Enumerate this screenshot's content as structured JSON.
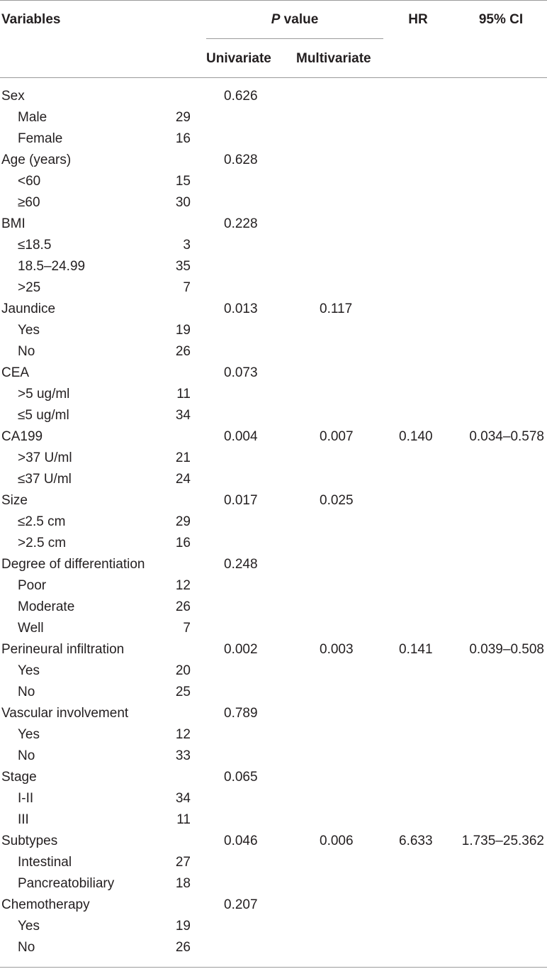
{
  "header": {
    "variables": "Variables",
    "p_value_italic": "P",
    "p_value_rest": " value",
    "univariate": "Univariate",
    "multivariate": "Multivariate",
    "hr": "HR",
    "ci": "95% CI"
  },
  "rows": [
    {
      "label": "Sex",
      "n": "",
      "uni": "0.626",
      "multi": "",
      "hr": "",
      "ci": "",
      "sub": false
    },
    {
      "label": "Male",
      "n": "29",
      "uni": "",
      "multi": "",
      "hr": "",
      "ci": "",
      "sub": true
    },
    {
      "label": "Female",
      "n": "16",
      "uni": "",
      "multi": "",
      "hr": "",
      "ci": "",
      "sub": true
    },
    {
      "label": "Age (years)",
      "n": "",
      "uni": "0.628",
      "multi": "",
      "hr": "",
      "ci": "",
      "sub": false
    },
    {
      "label": "<60",
      "n": "15",
      "uni": "",
      "multi": "",
      "hr": "",
      "ci": "",
      "sub": true
    },
    {
      "label": "≥60",
      "n": "30",
      "uni": "",
      "multi": "",
      "hr": "",
      "ci": "",
      "sub": true
    },
    {
      "label": "BMI",
      "n": "",
      "uni": "0.228",
      "multi": "",
      "hr": "",
      "ci": "",
      "sub": false
    },
    {
      "label": "≤18.5",
      "n": "3",
      "uni": "",
      "multi": "",
      "hr": "",
      "ci": "",
      "sub": true
    },
    {
      "label": "18.5–24.99",
      "n": "35",
      "uni": "",
      "multi": "",
      "hr": "",
      "ci": "",
      "sub": true
    },
    {
      "label": ">25",
      "n": "7",
      "uni": "",
      "multi": "",
      "hr": "",
      "ci": "",
      "sub": true
    },
    {
      "label": "Jaundice",
      "n": "",
      "uni": "0.013",
      "multi": "0.117",
      "hr": "",
      "ci": "",
      "sub": false
    },
    {
      "label": "Yes",
      "n": "19",
      "uni": "",
      "multi": "",
      "hr": "",
      "ci": "",
      "sub": true
    },
    {
      "label": "No",
      "n": "26",
      "uni": "",
      "multi": "",
      "hr": "",
      "ci": "",
      "sub": true
    },
    {
      "label": "CEA",
      "n": "",
      "uni": "0.073",
      "multi": "",
      "hr": "",
      "ci": "",
      "sub": false
    },
    {
      "label": ">5 ug/ml",
      "n": "11",
      "uni": "",
      "multi": "",
      "hr": "",
      "ci": "",
      "sub": true
    },
    {
      "label": "≤5 ug/ml",
      "n": "34",
      "uni": "",
      "multi": "",
      "hr": "",
      "ci": "",
      "sub": true
    },
    {
      "label": "CA199",
      "n": "",
      "uni": "0.004",
      "multi": "0.007",
      "hr": "0.140",
      "ci": "0.034–0.578",
      "sub": false
    },
    {
      "label": ">37 U/ml",
      "n": "21",
      "uni": "",
      "multi": "",
      "hr": "",
      "ci": "",
      "sub": true
    },
    {
      "label": "≤37 U/ml",
      "n": "24",
      "uni": "",
      "multi": "",
      "hr": "",
      "ci": "",
      "sub": true
    },
    {
      "label": "Size",
      "n": "",
      "uni": "0.017",
      "multi": "0.025",
      "hr": "",
      "ci": "",
      "sub": false
    },
    {
      "label": "≤2.5 cm",
      "n": "29",
      "uni": "",
      "multi": "",
      "hr": "",
      "ci": "",
      "sub": true
    },
    {
      "label": ">2.5 cm",
      "n": "16",
      "uni": "",
      "multi": "",
      "hr": "",
      "ci": "",
      "sub": true
    },
    {
      "label": "Degree of differentiation",
      "n": "",
      "uni": "0.248",
      "multi": "",
      "hr": "",
      "ci": "",
      "sub": false
    },
    {
      "label": "Poor",
      "n": "12",
      "uni": "",
      "multi": "",
      "hr": "",
      "ci": "",
      "sub": true
    },
    {
      "label": "Moderate",
      "n": "26",
      "uni": "",
      "multi": "",
      "hr": "",
      "ci": "",
      "sub": true
    },
    {
      "label": "Well",
      "n": "7",
      "uni": "",
      "multi": "",
      "hr": "",
      "ci": "",
      "sub": true
    },
    {
      "label": "Perineural infiltration",
      "n": "",
      "uni": "0.002",
      "multi": "0.003",
      "hr": "0.141",
      "ci": "0.039–0.508",
      "sub": false
    },
    {
      "label": "Yes",
      "n": "20",
      "uni": "",
      "multi": "",
      "hr": "",
      "ci": "",
      "sub": true
    },
    {
      "label": "No",
      "n": "25",
      "uni": "",
      "multi": "",
      "hr": "",
      "ci": "",
      "sub": true
    },
    {
      "label": "Vascular involvement",
      "n": "",
      "uni": "0.789",
      "multi": "",
      "hr": "",
      "ci": "",
      "sub": false
    },
    {
      "label": "Yes",
      "n": "12",
      "uni": "",
      "multi": "",
      "hr": "",
      "ci": "",
      "sub": true
    },
    {
      "label": "No",
      "n": "33",
      "uni": "",
      "multi": "",
      "hr": "",
      "ci": "",
      "sub": true
    },
    {
      "label": "Stage",
      "n": "",
      "uni": "0.065",
      "multi": "",
      "hr": "",
      "ci": "",
      "sub": false
    },
    {
      "label": "I-II",
      "n": "34",
      "uni": "",
      "multi": "",
      "hr": "",
      "ci": "",
      "sub": true
    },
    {
      "label": "III",
      "n": "11",
      "uni": "",
      "multi": "",
      "hr": "",
      "ci": "",
      "sub": true
    },
    {
      "label": "Subtypes",
      "n": "",
      "uni": "0.046",
      "multi": "0.006",
      "hr": "6.633",
      "ci": "1.735–25.362",
      "sub": false
    },
    {
      "label": "Intestinal",
      "n": "27",
      "uni": "",
      "multi": "",
      "hr": "",
      "ci": "",
      "sub": true
    },
    {
      "label": "Pancreatobiliary",
      "n": "18",
      "uni": "",
      "multi": "",
      "hr": "",
      "ci": "",
      "sub": true
    },
    {
      "label": "Chemotherapy",
      "n": "",
      "uni": "0.207",
      "multi": "",
      "hr": "",
      "ci": "",
      "sub": false
    },
    {
      "label": "Yes",
      "n": "19",
      "uni": "",
      "multi": "",
      "hr": "",
      "ci": "",
      "sub": true
    },
    {
      "label": "No",
      "n": "26",
      "uni": "",
      "multi": "",
      "hr": "",
      "ci": "",
      "sub": true
    }
  ]
}
